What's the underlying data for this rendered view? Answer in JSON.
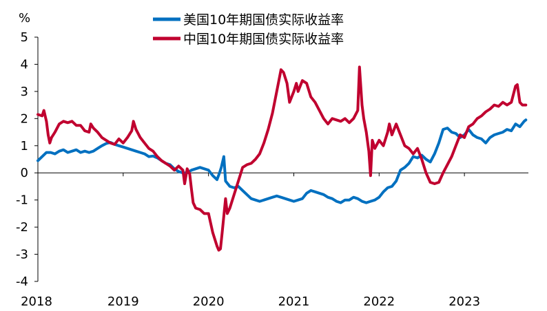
{
  "chart_data": {
    "type": "line",
    "title": "",
    "xlabel": "",
    "ylabel": "%",
    "ylim": [
      -4,
      5
    ],
    "yticks": [
      5,
      4,
      3,
      2,
      1,
      0,
      -1,
      -2,
      -3,
      -4
    ],
    "yticklabels": [
      "5",
      "4",
      "3",
      "2",
      "1",
      "0",
      "-1",
      "-2",
      "-3",
      "-4"
    ],
    "xlim": [
      2018.0,
      2023.75
    ],
    "xticks": [
      2018,
      2019,
      2020,
      2021,
      2022,
      2023
    ],
    "xticklabels": [
      "2018",
      "2019",
      "2020",
      "2021",
      "2022",
      "2023"
    ],
    "grid": false,
    "zero_line": true,
    "legend": {
      "position": "top-center",
      "entries": [
        "美国10年期国债实际收益率",
        "中国10年期国债实际收益率"
      ]
    },
    "series": [
      {
        "name": "美国10年期国债实际收益率",
        "color": "#0070C0",
        "points": [
          [
            2018.0,
            0.45
          ],
          [
            2018.05,
            0.6
          ],
          [
            2018.1,
            0.75
          ],
          [
            2018.15,
            0.75
          ],
          [
            2018.2,
            0.7
          ],
          [
            2018.25,
            0.8
          ],
          [
            2018.3,
            0.85
          ],
          [
            2018.35,
            0.75
          ],
          [
            2018.4,
            0.8
          ],
          [
            2018.45,
            0.85
          ],
          [
            2018.5,
            0.75
          ],
          [
            2018.55,
            0.8
          ],
          [
            2018.6,
            0.75
          ],
          [
            2018.65,
            0.8
          ],
          [
            2018.7,
            0.9
          ],
          [
            2018.75,
            1.0
          ],
          [
            2018.8,
            1.08
          ],
          [
            2018.85,
            1.12
          ],
          [
            2018.9,
            1.05
          ],
          [
            2018.95,
            1.0
          ],
          [
            2019.0,
            0.95
          ],
          [
            2019.05,
            0.9
          ],
          [
            2019.1,
            0.85
          ],
          [
            2019.15,
            0.8
          ],
          [
            2019.2,
            0.75
          ],
          [
            2019.25,
            0.7
          ],
          [
            2019.3,
            0.6
          ],
          [
            2019.35,
            0.62
          ],
          [
            2019.4,
            0.55
          ],
          [
            2019.45,
            0.45
          ],
          [
            2019.5,
            0.35
          ],
          [
            2019.55,
            0.3
          ],
          [
            2019.6,
            0.15
          ],
          [
            2019.65,
            0.05
          ],
          [
            2019.7,
            0.0
          ],
          [
            2019.75,
            0.0
          ],
          [
            2019.8,
            0.1
          ],
          [
            2019.85,
            0.15
          ],
          [
            2019.9,
            0.2
          ],
          [
            2019.95,
            0.15
          ],
          [
            2020.0,
            0.1
          ],
          [
            2020.05,
            -0.1
          ],
          [
            2020.1,
            -0.25
          ],
          [
            2020.13,
            0.0
          ],
          [
            2020.15,
            0.2
          ],
          [
            2020.18,
            0.6
          ],
          [
            2020.2,
            -0.3
          ],
          [
            2020.25,
            -0.5
          ],
          [
            2020.3,
            -0.55
          ],
          [
            2020.35,
            -0.5
          ],
          [
            2020.4,
            -0.65
          ],
          [
            2020.45,
            -0.8
          ],
          [
            2020.5,
            -0.95
          ],
          [
            2020.55,
            -1.0
          ],
          [
            2020.6,
            -1.05
          ],
          [
            2020.65,
            -1.0
          ],
          [
            2020.7,
            -0.95
          ],
          [
            2020.75,
            -0.9
          ],
          [
            2020.8,
            -0.85
          ],
          [
            2020.85,
            -0.9
          ],
          [
            2020.9,
            -0.95
          ],
          [
            2020.95,
            -1.0
          ],
          [
            2021.0,
            -1.05
          ],
          [
            2021.05,
            -1.0
          ],
          [
            2021.1,
            -0.95
          ],
          [
            2021.15,
            -0.75
          ],
          [
            2021.2,
            -0.65
          ],
          [
            2021.25,
            -0.7
          ],
          [
            2021.3,
            -0.75
          ],
          [
            2021.35,
            -0.8
          ],
          [
            2021.4,
            -0.9
          ],
          [
            2021.45,
            -0.95
          ],
          [
            2021.5,
            -1.05
          ],
          [
            2021.55,
            -1.1
          ],
          [
            2021.6,
            -1.0
          ],
          [
            2021.65,
            -1.0
          ],
          [
            2021.7,
            -0.9
          ],
          [
            2021.75,
            -0.95
          ],
          [
            2021.8,
            -1.05
          ],
          [
            2021.85,
            -1.1
          ],
          [
            2021.9,
            -1.05
          ],
          [
            2021.95,
            -1.0
          ],
          [
            2022.0,
            -0.9
          ],
          [
            2022.05,
            -0.7
          ],
          [
            2022.1,
            -0.55
          ],
          [
            2022.15,
            -0.5
          ],
          [
            2022.2,
            -0.3
          ],
          [
            2022.25,
            0.1
          ],
          [
            2022.3,
            0.2
          ],
          [
            2022.35,
            0.35
          ],
          [
            2022.4,
            0.6
          ],
          [
            2022.45,
            0.55
          ],
          [
            2022.5,
            0.65
          ],
          [
            2022.55,
            0.5
          ],
          [
            2022.6,
            0.4
          ],
          [
            2022.65,
            0.7
          ],
          [
            2022.7,
            1.1
          ],
          [
            2022.75,
            1.6
          ],
          [
            2022.8,
            1.65
          ],
          [
            2022.85,
            1.5
          ],
          [
            2022.9,
            1.45
          ],
          [
            2022.95,
            1.3
          ],
          [
            2023.0,
            1.4
          ],
          [
            2023.05,
            1.6
          ],
          [
            2023.1,
            1.4
          ],
          [
            2023.15,
            1.3
          ],
          [
            2023.2,
            1.25
          ],
          [
            2023.25,
            1.1
          ],
          [
            2023.3,
            1.3
          ],
          [
            2023.35,
            1.4
          ],
          [
            2023.4,
            1.45
          ],
          [
            2023.45,
            1.5
          ],
          [
            2023.5,
            1.6
          ],
          [
            2023.55,
            1.55
          ],
          [
            2023.6,
            1.8
          ],
          [
            2023.65,
            1.7
          ],
          [
            2023.7,
            1.9
          ],
          [
            2023.72,
            1.95
          ]
        ]
      },
      {
        "name": "中国10年期国债实际收益率",
        "color": "#C0002F",
        "points": [
          [
            2018.0,
            2.15
          ],
          [
            2018.05,
            2.1
          ],
          [
            2018.07,
            2.3
          ],
          [
            2018.1,
            1.9
          ],
          [
            2018.12,
            1.4
          ],
          [
            2018.14,
            1.1
          ],
          [
            2018.16,
            1.3
          ],
          [
            2018.2,
            1.5
          ],
          [
            2018.25,
            1.8
          ],
          [
            2018.3,
            1.9
          ],
          [
            2018.35,
            1.85
          ],
          [
            2018.4,
            1.9
          ],
          [
            2018.45,
            1.75
          ],
          [
            2018.5,
            1.75
          ],
          [
            2018.55,
            1.55
          ],
          [
            2018.6,
            1.5
          ],
          [
            2018.62,
            1.8
          ],
          [
            2018.65,
            1.65
          ],
          [
            2018.7,
            1.5
          ],
          [
            2018.75,
            1.3
          ],
          [
            2018.8,
            1.2
          ],
          [
            2018.85,
            1.1
          ],
          [
            2018.9,
            1.05
          ],
          [
            2018.95,
            1.25
          ],
          [
            2019.0,
            1.1
          ],
          [
            2019.05,
            1.3
          ],
          [
            2019.1,
            1.55
          ],
          [
            2019.12,
            1.9
          ],
          [
            2019.15,
            1.6
          ],
          [
            2019.2,
            1.3
          ],
          [
            2019.25,
            1.1
          ],
          [
            2019.3,
            0.9
          ],
          [
            2019.35,
            0.8
          ],
          [
            2019.4,
            0.6
          ],
          [
            2019.45,
            0.45
          ],
          [
            2019.5,
            0.35
          ],
          [
            2019.55,
            0.25
          ],
          [
            2019.6,
            0.1
          ],
          [
            2019.65,
            0.25
          ],
          [
            2019.7,
            0.1
          ],
          [
            2019.72,
            -0.4
          ],
          [
            2019.75,
            0.15
          ],
          [
            2019.78,
            -0.05
          ],
          [
            2019.8,
            -0.6
          ],
          [
            2019.82,
            -1.1
          ],
          [
            2019.85,
            -1.3
          ],
          [
            2019.9,
            -1.35
          ],
          [
            2019.95,
            -1.5
          ],
          [
            2020.0,
            -1.5
          ],
          [
            2020.05,
            -2.2
          ],
          [
            2020.1,
            -2.7
          ],
          [
            2020.12,
            -2.85
          ],
          [
            2020.14,
            -2.8
          ],
          [
            2020.16,
            -2.2
          ],
          [
            2020.2,
            -0.95
          ],
          [
            2020.22,
            -1.5
          ],
          [
            2020.25,
            -1.3
          ],
          [
            2020.3,
            -0.8
          ],
          [
            2020.35,
            -0.3
          ],
          [
            2020.4,
            0.2
          ],
          [
            2020.45,
            0.3
          ],
          [
            2020.5,
            0.35
          ],
          [
            2020.55,
            0.5
          ],
          [
            2020.6,
            0.7
          ],
          [
            2020.65,
            1.1
          ],
          [
            2020.7,
            1.6
          ],
          [
            2020.75,
            2.2
          ],
          [
            2020.8,
            3.0
          ],
          [
            2020.85,
            3.8
          ],
          [
            2020.88,
            3.7
          ],
          [
            2020.92,
            3.3
          ],
          [
            2020.95,
            2.6
          ],
          [
            2021.0,
            3.0
          ],
          [
            2021.03,
            3.3
          ],
          [
            2021.05,
            3.0
          ],
          [
            2021.1,
            3.4
          ],
          [
            2021.15,
            3.3
          ],
          [
            2021.2,
            2.8
          ],
          [
            2021.25,
            2.6
          ],
          [
            2021.3,
            2.3
          ],
          [
            2021.35,
            2.0
          ],
          [
            2021.4,
            1.8
          ],
          [
            2021.45,
            2.0
          ],
          [
            2021.5,
            1.95
          ],
          [
            2021.55,
            1.9
          ],
          [
            2021.6,
            2.0
          ],
          [
            2021.65,
            1.85
          ],
          [
            2021.7,
            2.0
          ],
          [
            2021.75,
            2.3
          ],
          [
            2021.77,
            3.9
          ],
          [
            2021.8,
            2.5
          ],
          [
            2021.82,
            2.0
          ],
          [
            2021.85,
            1.5
          ],
          [
            2021.88,
            0.8
          ],
          [
            2021.9,
            -0.1
          ],
          [
            2021.92,
            1.2
          ],
          [
            2021.95,
            0.9
          ],
          [
            2022.0,
            1.2
          ],
          [
            2022.05,
            1.0
          ],
          [
            2022.1,
            1.5
          ],
          [
            2022.12,
            1.8
          ],
          [
            2022.15,
            1.4
          ],
          [
            2022.2,
            1.8
          ],
          [
            2022.25,
            1.4
          ],
          [
            2022.3,
            1.0
          ],
          [
            2022.35,
            0.9
          ],
          [
            2022.4,
            0.7
          ],
          [
            2022.45,
            0.9
          ],
          [
            2022.5,
            0.5
          ],
          [
            2022.55,
            0.0
          ],
          [
            2022.6,
            -0.35
          ],
          [
            2022.65,
            -0.4
          ],
          [
            2022.7,
            -0.35
          ],
          [
            2022.75,
            0.0
          ],
          [
            2022.8,
            0.3
          ],
          [
            2022.85,
            0.6
          ],
          [
            2022.9,
            1.0
          ],
          [
            2022.95,
            1.4
          ],
          [
            2023.0,
            1.3
          ],
          [
            2023.05,
            1.7
          ],
          [
            2023.1,
            1.8
          ],
          [
            2023.15,
            2.0
          ],
          [
            2023.2,
            2.1
          ],
          [
            2023.25,
            2.25
          ],
          [
            2023.3,
            2.35
          ],
          [
            2023.35,
            2.5
          ],
          [
            2023.4,
            2.45
          ],
          [
            2023.45,
            2.6
          ],
          [
            2023.5,
            2.5
          ],
          [
            2023.55,
            2.6
          ],
          [
            2023.6,
            3.2
          ],
          [
            2023.62,
            3.25
          ],
          [
            2023.65,
            2.6
          ],
          [
            2023.68,
            2.5
          ],
          [
            2023.72,
            2.5
          ]
        ]
      }
    ]
  }
}
